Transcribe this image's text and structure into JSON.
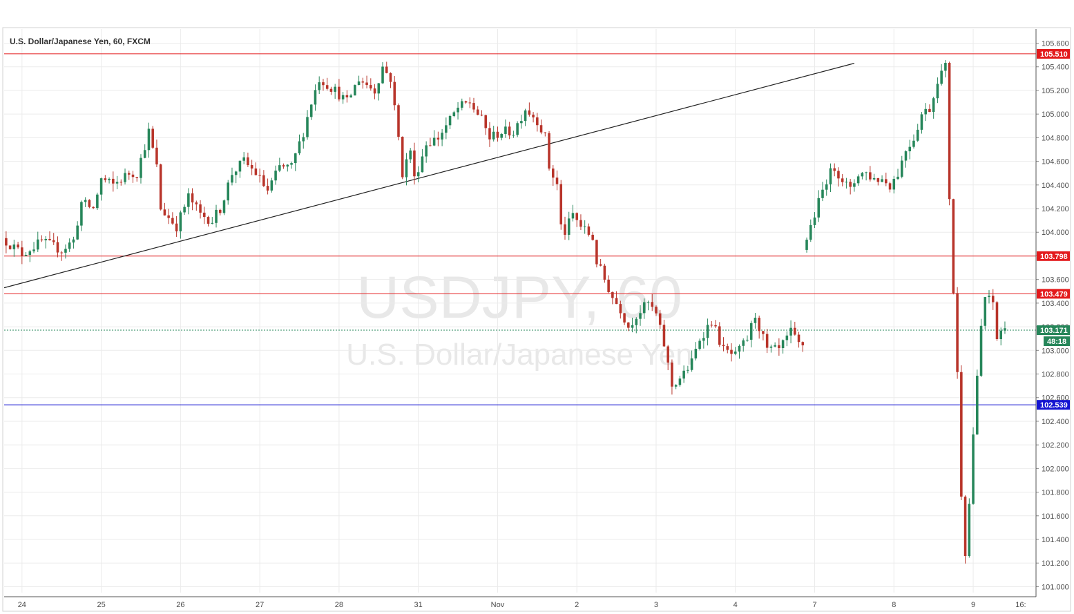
{
  "chart_data": {
    "type": "candlestick",
    "title": "U.S. Dollar/Japanese Yen, 60, FXCM",
    "watermark": {
      "symbol": "USDJPY, 60",
      "name": "U.S. Dollar/Japanese Yen"
    },
    "ylim": [
      100.95,
      105.72
    ],
    "y_ticks": [
      101.0,
      101.2,
      101.4,
      101.6,
      101.8,
      102.0,
      102.2,
      102.4,
      102.6,
      102.8,
      103.0,
      103.2,
      103.4,
      103.6,
      103.8,
      104.0,
      104.2,
      104.4,
      104.6,
      104.8,
      105.0,
      105.2,
      105.4,
      105.6
    ],
    "y_tick_labels": [
      "101.000",
      "101.200",
      "101.400",
      "101.600",
      "101.800",
      "102.000",
      "102.200",
      "102.400",
      "102.600",
      "102.800",
      "103.000",
      "103.200",
      "103.400",
      "103.600",
      "103.800",
      "104.000",
      "104.200",
      "104.400",
      "104.600",
      "104.800",
      "105.000",
      "105.200",
      "105.400",
      "105.600"
    ],
    "x_labels": [
      "24",
      "25",
      "26",
      "27",
      "28",
      "31",
      "Nov",
      "2",
      "3",
      "4",
      "7",
      "8",
      "9",
      "16:"
    ],
    "x_label_bars": [
      4,
      24,
      44,
      64,
      84,
      104,
      124,
      144,
      164,
      184,
      204,
      224,
      244,
      256
    ],
    "grid": true,
    "up_color": "#26865a",
    "down_color": "#b8342a",
    "horizontal_lines": [
      {
        "price": 105.51,
        "label": "105.510",
        "color": "#e31a1c"
      },
      {
        "price": 103.798,
        "label": "103.798",
        "color": "#e31a1c"
      },
      {
        "price": 103.479,
        "label": "103.479",
        "color": "#e31a1c"
      },
      {
        "price": 102.539,
        "label": "102.539",
        "color": "#1414d2"
      }
    ],
    "current_price": {
      "price": 103.171,
      "label": "103.171",
      "countdown": "48:18",
      "color": "#26865a"
    },
    "trendline": {
      "from": {
        "bar": 0,
        "price": 103.53
      },
      "to": {
        "bar": 214,
        "price": 105.43
      },
      "color": "#222222"
    },
    "segments": [
      {
        "start_bar": 0,
        "points": [
          [
            0,
            103.95
          ],
          [
            5,
            103.82
          ],
          [
            10,
            103.92
          ],
          [
            15,
            103.85
          ],
          [
            18,
            103.93
          ],
          [
            20,
            104.25
          ],
          [
            23,
            104.2
          ],
          [
            25,
            104.45
          ],
          [
            28,
            104.4
          ],
          [
            30,
            104.45
          ],
          [
            32,
            104.5
          ],
          [
            34,
            104.5
          ],
          [
            37,
            104.85
          ],
          [
            39,
            104.55
          ],
          [
            40,
            104.2
          ],
          [
            44,
            104.05
          ],
          [
            47,
            104.3
          ],
          [
            50,
            104.15
          ],
          [
            53,
            104.1
          ],
          [
            55,
            104.2
          ],
          [
            58,
            104.5
          ],
          [
            61,
            104.6
          ],
          [
            64,
            104.5
          ],
          [
            67,
            104.35
          ],
          [
            70,
            104.55
          ],
          [
            73,
            104.55
          ],
          [
            76,
            104.85
          ],
          [
            78,
            105.1
          ],
          [
            80,
            105.3
          ],
          [
            84,
            105.2
          ],
          [
            87,
            105.1
          ],
          [
            90,
            105.3
          ],
          [
            94,
            105.2
          ],
          [
            96,
            105.4
          ],
          [
            98,
            105.3
          ],
          [
            100,
            104.8
          ],
          [
            101,
            104.5
          ],
          [
            103,
            104.7
          ],
          [
            104,
            104.45
          ],
          [
            107,
            104.75
          ],
          [
            110,
            104.8
          ],
          [
            112,
            104.9
          ],
          [
            115,
            105.05
          ],
          [
            118,
            105.1
          ],
          [
            121,
            104.95
          ],
          [
            123,
            104.8
          ],
          [
            126,
            104.85
          ],
          [
            129,
            104.85
          ],
          [
            132,
            105.05
          ],
          [
            135,
            104.95
          ],
          [
            137,
            104.8
          ],
          [
            138,
            104.55
          ],
          [
            140,
            104.4
          ],
          [
            141,
            104.05
          ],
          [
            142,
            104.0
          ],
          [
            144,
            104.15
          ],
          [
            146,
            104.05
          ],
          [
            149,
            103.95
          ],
          [
            150,
            103.75
          ],
          [
            152,
            103.6
          ],
          [
            154,
            103.45
          ],
          [
            156,
            103.35
          ],
          [
            158,
            103.2
          ],
          [
            160,
            103.3
          ],
          [
            163,
            103.4
          ],
          [
            165,
            103.3
          ],
          [
            167,
            103.05
          ],
          [
            169,
            102.7
          ],
          [
            172,
            102.8
          ],
          [
            174,
            102.9
          ],
          [
            176,
            103.1
          ],
          [
            179,
            103.25
          ],
          [
            182,
            103.0
          ],
          [
            185,
            102.95
          ],
          [
            188,
            103.1
          ],
          [
            190,
            103.3
          ],
          [
            193,
            103.0
          ],
          [
            196,
            103.0
          ],
          [
            199,
            103.15
          ],
          [
            201,
            103.05
          ]
        ]
      },
      {
        "start_bar": 202,
        "points": [
          [
            0,
            103.85
          ],
          [
            2,
            104.05
          ],
          [
            4,
            104.25
          ],
          [
            6,
            104.45
          ],
          [
            8,
            104.55
          ],
          [
            10,
            104.45
          ],
          [
            12,
            104.35
          ],
          [
            14,
            104.5
          ],
          [
            16,
            104.5
          ],
          [
            18,
            104.45
          ],
          [
            20,
            104.45
          ],
          [
            22,
            104.4
          ],
          [
            24,
            104.5
          ],
          [
            26,
            104.7
          ],
          [
            28,
            104.8
          ],
          [
            30,
            105.0
          ],
          [
            32,
            105.05
          ],
          [
            33,
            105.15
          ],
          [
            34,
            105.3
          ],
          [
            36,
            105.4
          ],
          [
            37,
            104.3
          ],
          [
            38,
            103.5
          ],
          [
            39,
            102.8
          ],
          [
            40,
            101.8
          ],
          [
            41,
            101.3
          ],
          [
            42,
            101.7
          ],
          [
            43,
            102.3
          ],
          [
            45,
            103.2
          ],
          [
            46,
            103.45
          ],
          [
            48,
            103.4
          ],
          [
            49,
            103.1
          ],
          [
            50,
            103.17
          ]
        ]
      }
    ]
  }
}
